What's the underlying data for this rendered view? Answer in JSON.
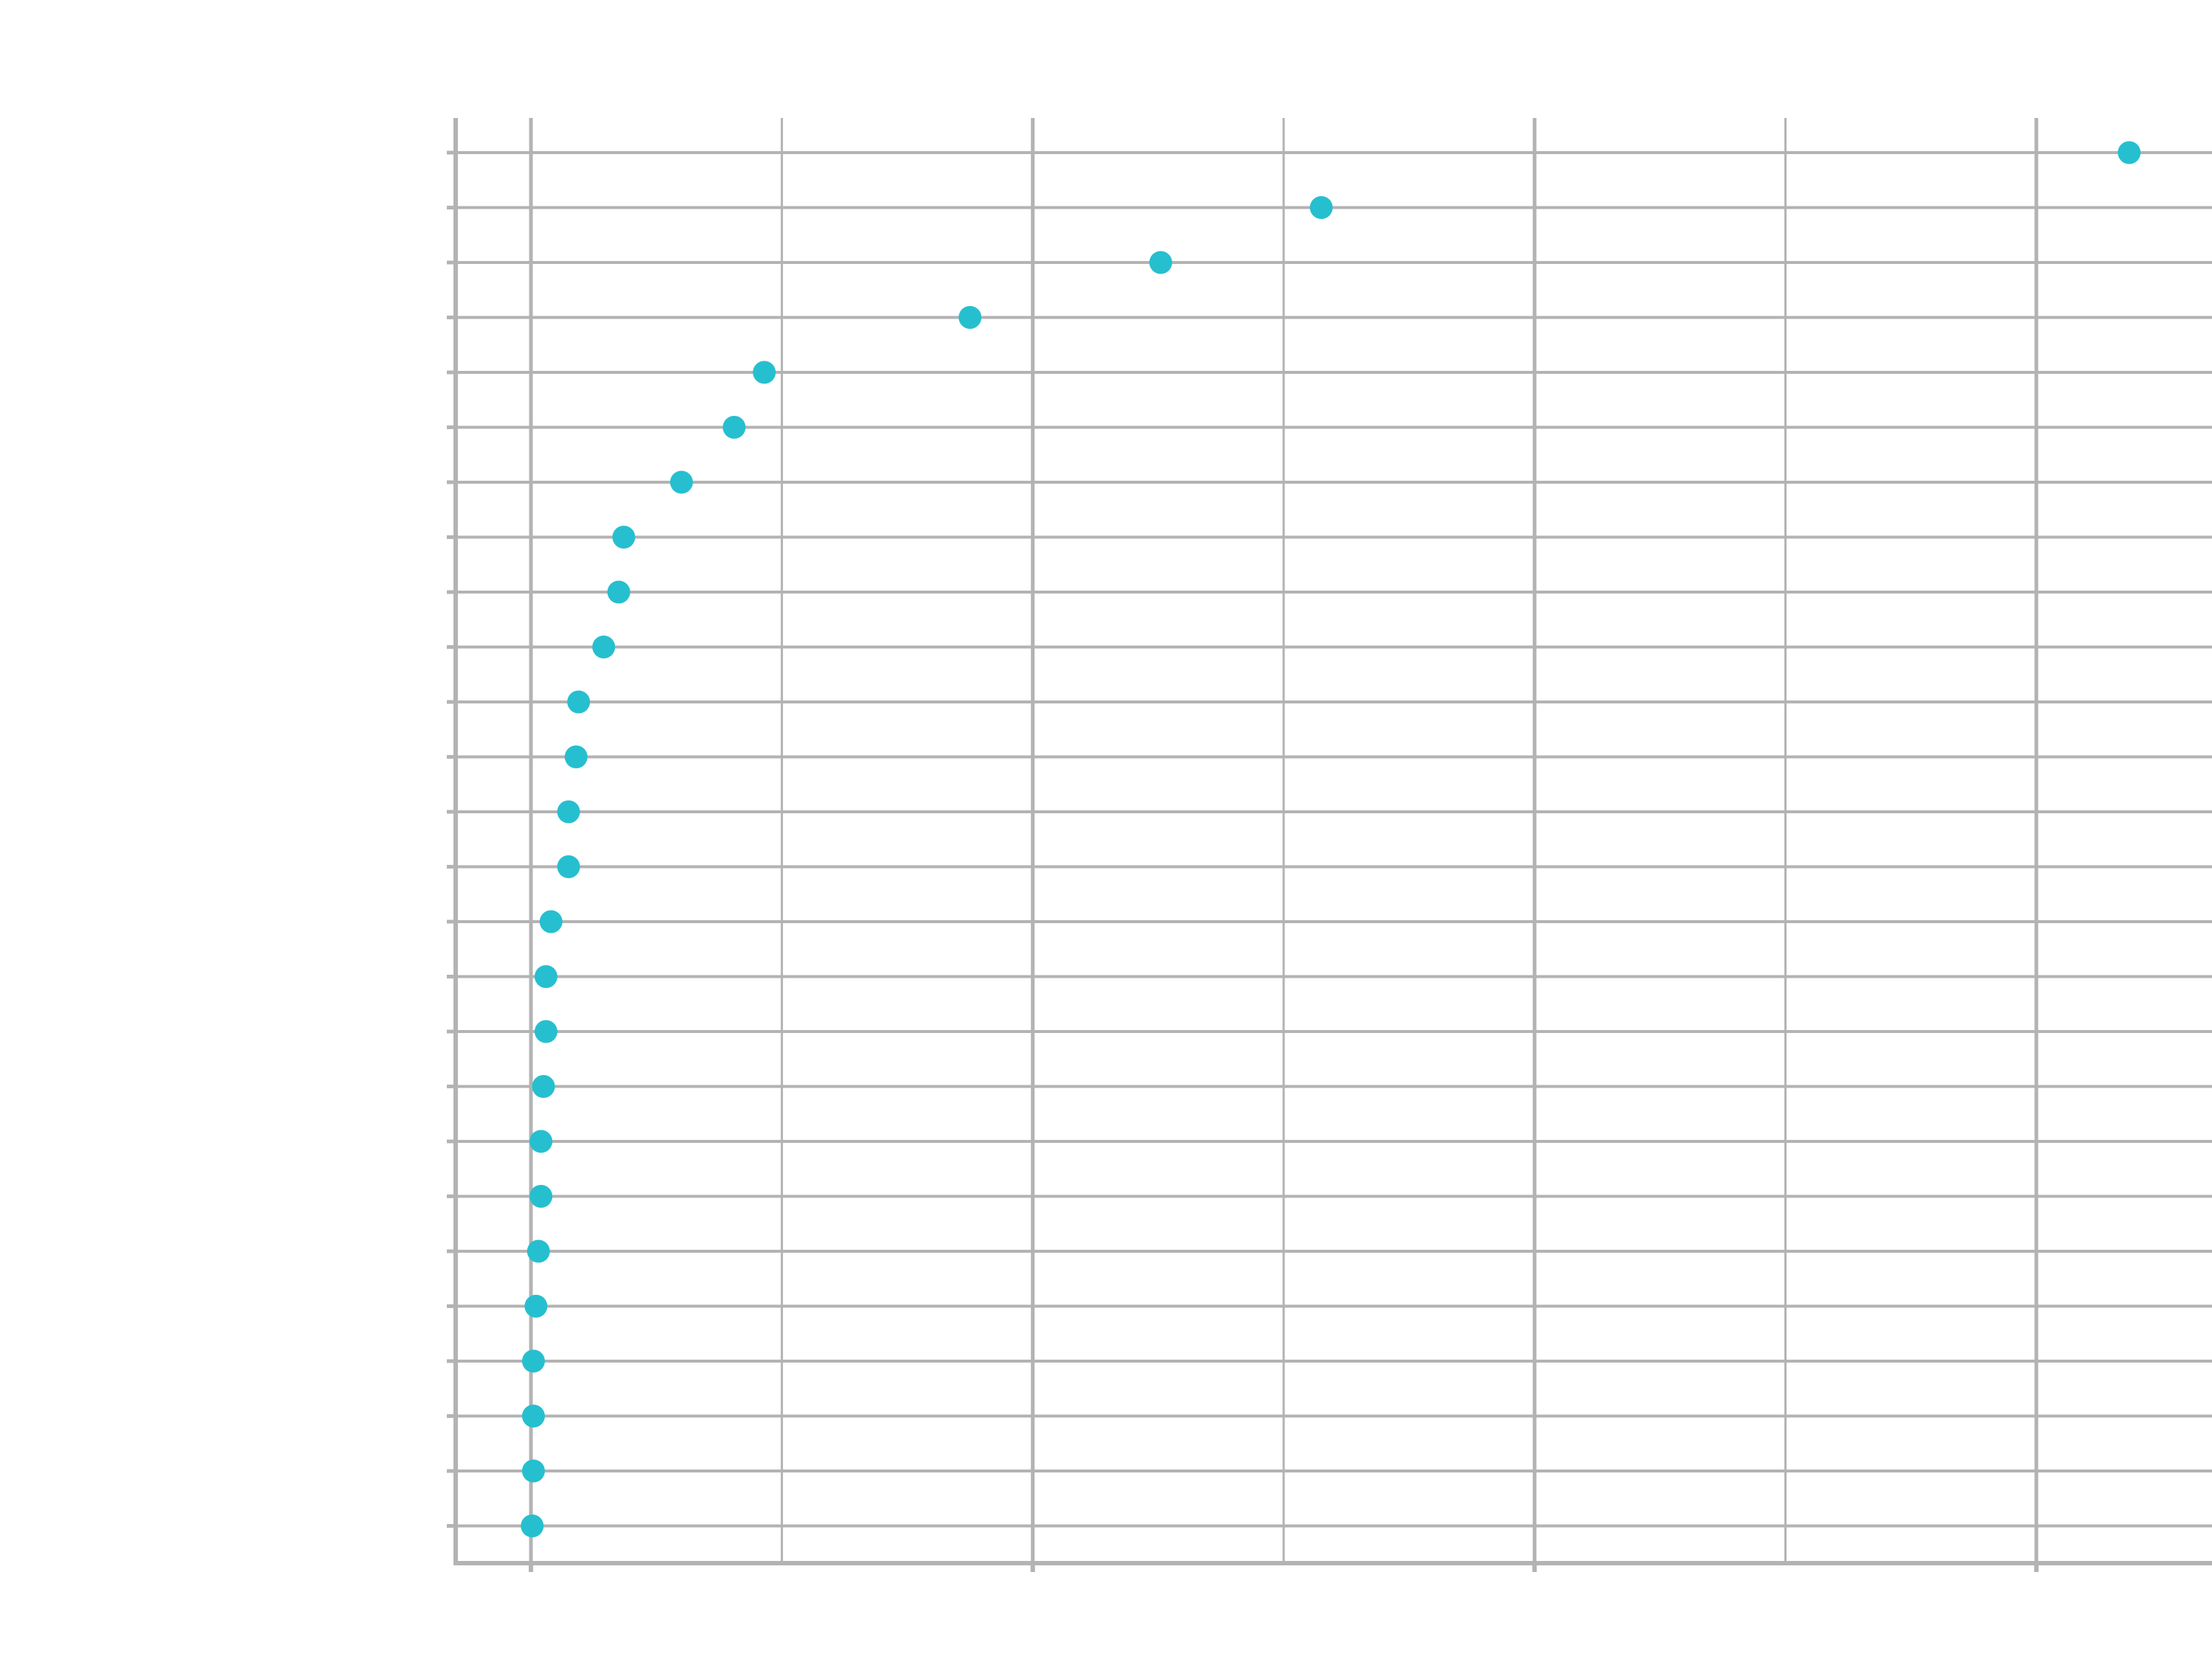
{
  "chart_data": {
    "type": "scatter",
    "title": "",
    "xlabel": "",
    "ylabel": "",
    "grid": true,
    "legend": "none",
    "xlim": [
      -0.3,
      6.7
    ],
    "x_gridlines": [
      0,
      1,
      2,
      3,
      4,
      5,
      6
    ],
    "x_major_ticks": [
      0,
      2,
      4,
      6
    ],
    "categories": [
      "",
      "",
      "",
      "",
      "",
      "",
      "",
      "",
      "",
      "",
      "",
      "",
      "",
      "",
      "",
      "",
      "",
      "",
      "",
      "",
      "",
      "",
      "",
      "",
      "",
      ""
    ],
    "series": [
      {
        "color": "#26bfcf",
        "values": [
          6.37,
          3.15,
          2.51,
          1.75,
          0.93,
          0.81,
          0.6,
          0.37,
          0.35,
          0.29,
          0.19,
          0.18,
          0.15,
          0.15,
          0.08,
          0.06,
          0.06,
          0.05,
          0.04,
          0.04,
          0.03,
          0.02,
          0.01,
          0.01,
          0.01,
          0.005
        ]
      }
    ]
  },
  "colors": {
    "grid": "#b3b3b3",
    "axis": "#b3b3b3",
    "point": "#26bfcf",
    "background": "#ffffff"
  }
}
